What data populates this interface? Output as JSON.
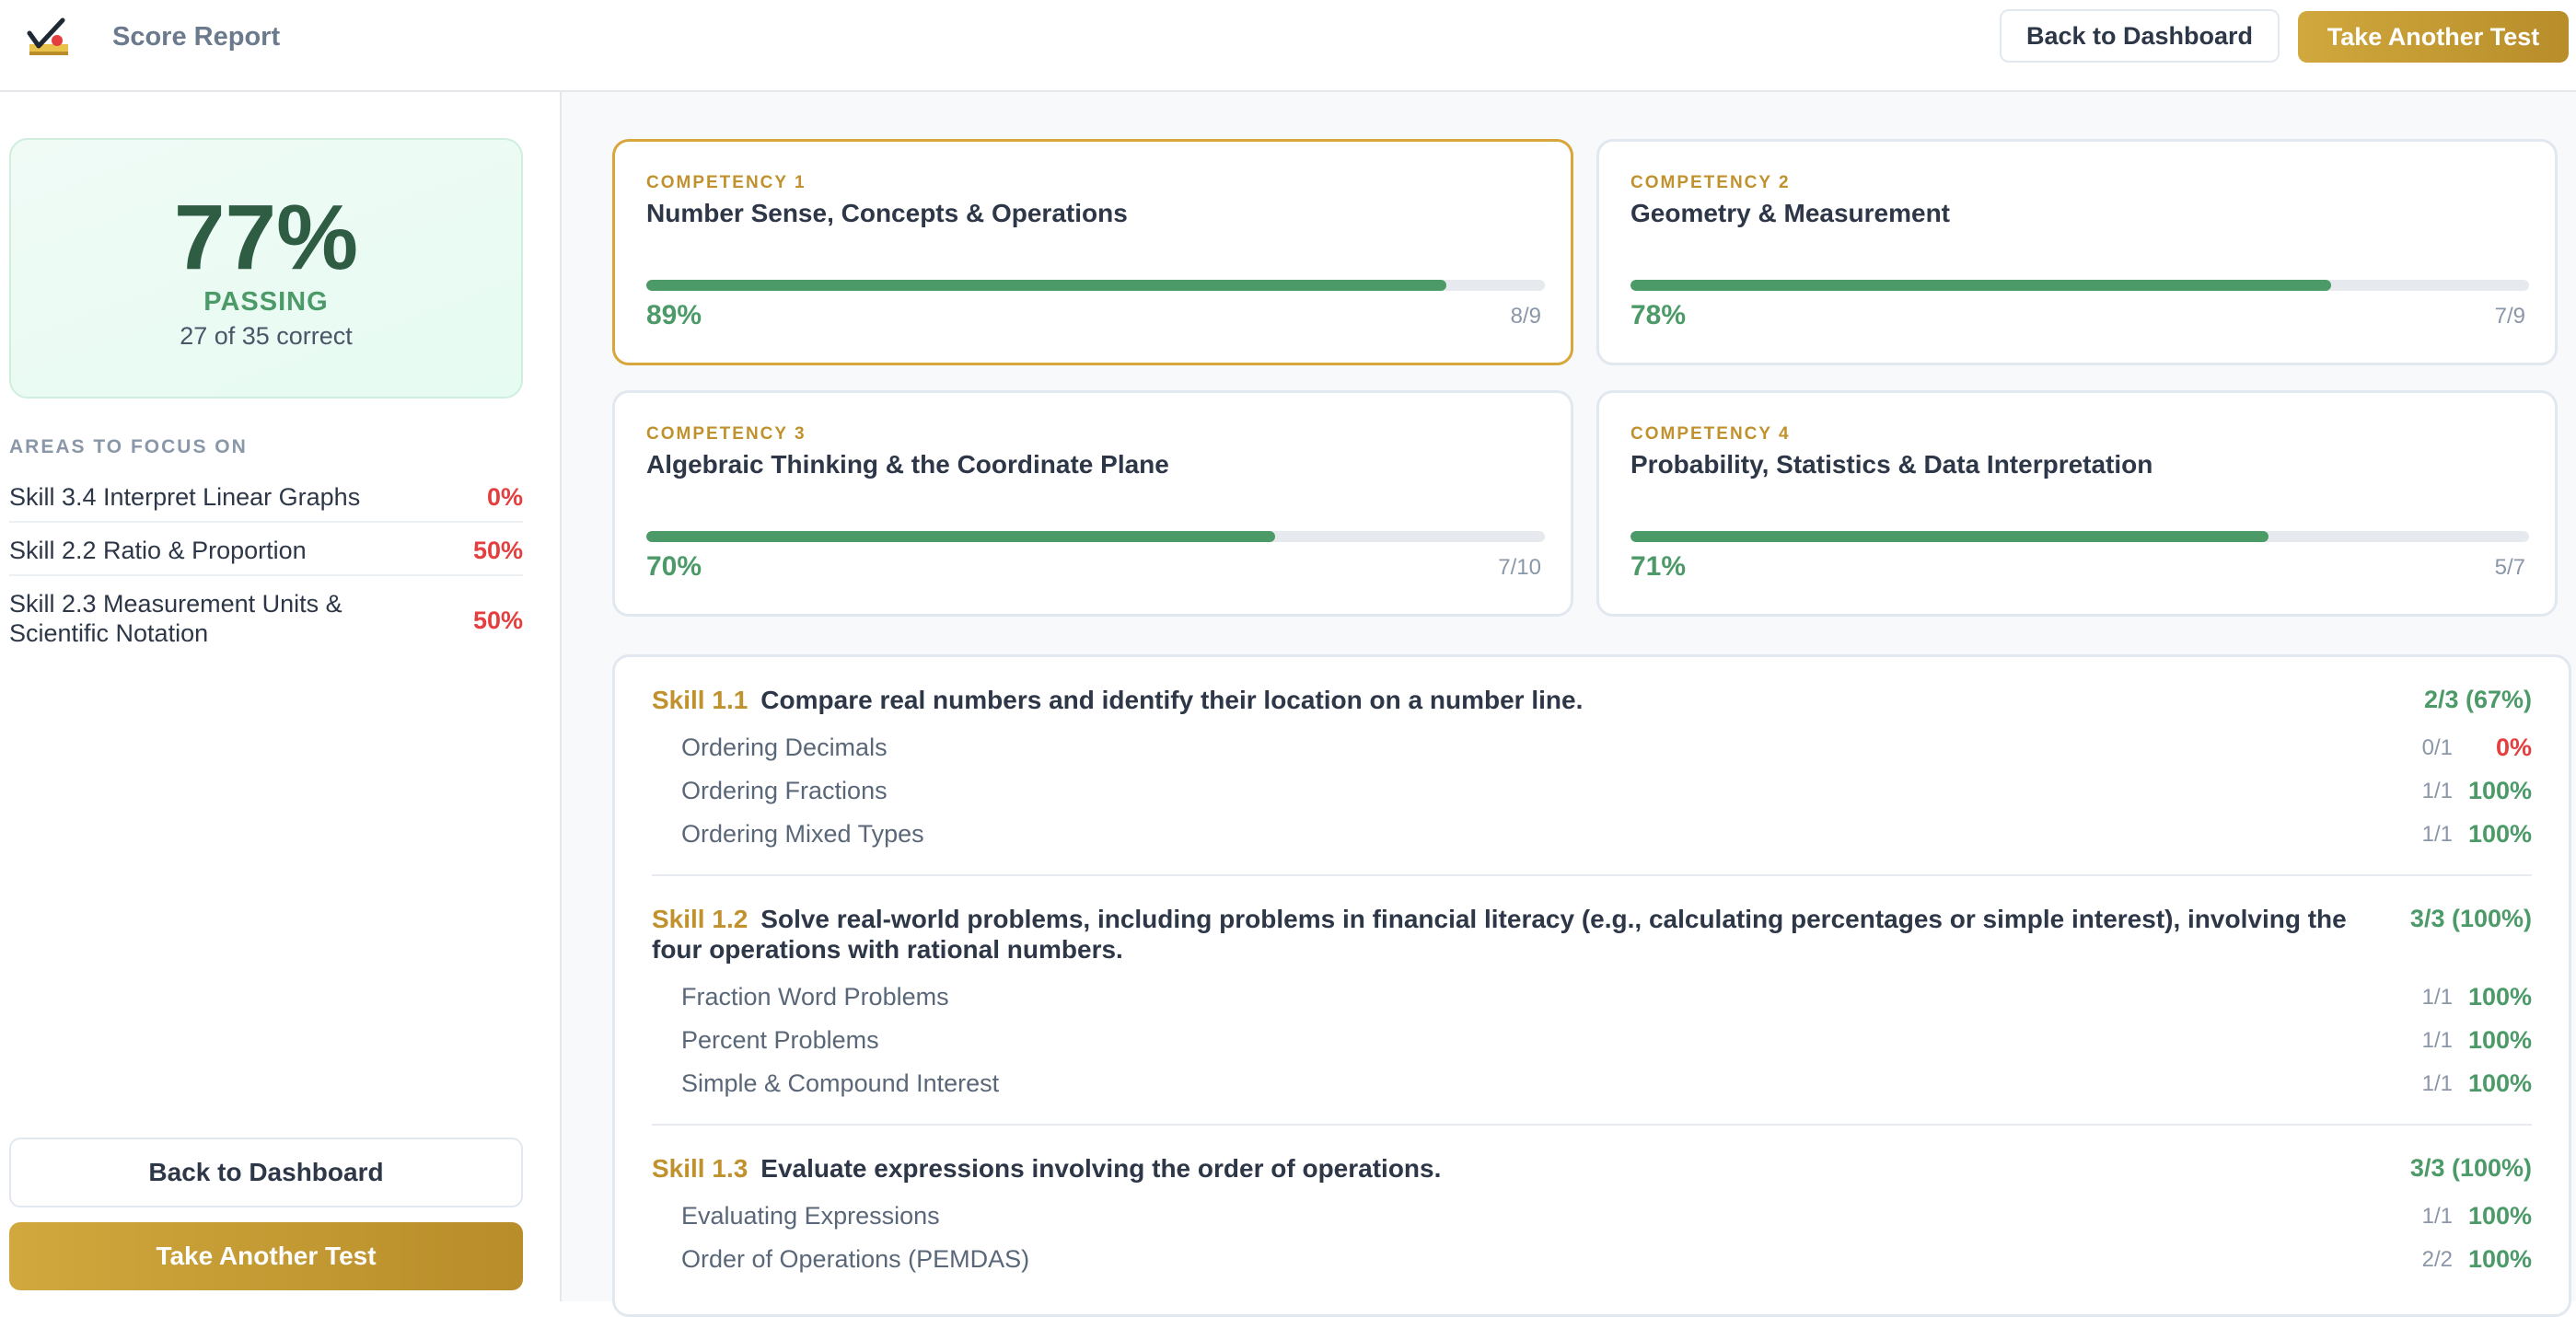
{
  "header": {
    "title": "Score Report",
    "back_label": "Back to Dashboard",
    "retake_label": "Take Another Test",
    "logo_icon": "checkmark-logo-icon"
  },
  "sidebar": {
    "score_percent": "77%",
    "status": "PASSING",
    "correct_text": "27 of 35 correct",
    "focus_title": "AREAS TO FOCUS ON",
    "focus_items": [
      {
        "name": "Skill 3.4 Interpret Linear Graphs",
        "pct": "0%"
      },
      {
        "name": "Skill 2.2 Ratio & Proportion",
        "pct": "50%"
      },
      {
        "name": "Skill 2.3 Measurement Units & Scientific Notation",
        "pct": "50%"
      }
    ],
    "back_label": "Back to Dashboard",
    "retake_label": "Take Another Test"
  },
  "competencies": [
    {
      "label": "COMPETENCY 1",
      "name": "Number Sense, Concepts & Operations",
      "pct": "89%",
      "frac": "8/9",
      "fill": 0.89,
      "active": true
    },
    {
      "label": "COMPETENCY 2",
      "name": "Geometry & Measurement",
      "pct": "78%",
      "frac": "7/9",
      "fill": 0.78,
      "active": false
    },
    {
      "label": "COMPETENCY 3",
      "name": "Algebraic Thinking & the Coordinate Plane",
      "pct": "70%",
      "frac": "7/10",
      "fill": 0.7,
      "active": false
    },
    {
      "label": "COMPETENCY 4",
      "name": "Probability, Statistics & Data Interpretation",
      "pct": "71%",
      "frac": "5/7",
      "fill": 0.71,
      "active": false
    }
  ],
  "skills": [
    {
      "code": "Skill 1.1",
      "title": "Compare real numbers and identify their location on a number line.",
      "score": "2/3 (67%)",
      "subs": [
        {
          "name": "Ordering Decimals",
          "frac": "0/1",
          "pct": "0%"
        },
        {
          "name": "Ordering Fractions",
          "frac": "1/1",
          "pct": "100%"
        },
        {
          "name": "Ordering Mixed Types",
          "frac": "1/1",
          "pct": "100%"
        }
      ]
    },
    {
      "code": "Skill 1.2",
      "title": "Solve real-world problems, including problems in financial literacy (e.g., calculating percentages or simple interest), involving the four operations with rational numbers.",
      "score": "3/3 (100%)",
      "subs": [
        {
          "name": "Fraction Word Problems",
          "frac": "1/1",
          "pct": "100%"
        },
        {
          "name": "Percent Problems",
          "frac": "1/1",
          "pct": "100%"
        },
        {
          "name": "Simple & Compound Interest",
          "frac": "1/1",
          "pct": "100%"
        }
      ]
    },
    {
      "code": "Skill 1.3",
      "title": "Evaluate expressions involving the order of operations.",
      "score": "3/3 (100%)",
      "subs": [
        {
          "name": "Evaluating Expressions",
          "frac": "1/1",
          "pct": "100%"
        },
        {
          "name": "Order of Operations (PEMDAS)",
          "frac": "2/2",
          "pct": "100%"
        }
      ]
    }
  ],
  "colors": {
    "accent_gold": "#c0912c",
    "pass_green": "#4c9a68",
    "fail_red": "#e53e3e"
  }
}
